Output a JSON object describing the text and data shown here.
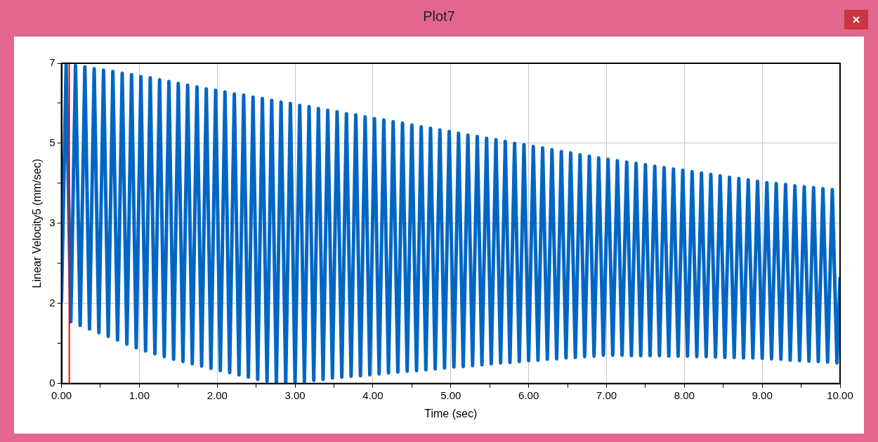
{
  "chart_data": {
    "type": "line",
    "title": "Plot7",
    "xlabel": "Time (sec)",
    "ylabel": "Linear Velocity5 (mm/sec)",
    "x": [
      0,
      0.06,
      0.12,
      0.18,
      0.24,
      0.3,
      0.36,
      0.42,
      0.48,
      0.54,
      0.6,
      0.66,
      0.72,
      0.78,
      0.84,
      0.9,
      0.96,
      1.02,
      1.08,
      1.14,
      1.2,
      1.26,
      1.32,
      1.38,
      1.44,
      1.5,
      1.56,
      1.62,
      1.68,
      1.74,
      1.8,
      1.86,
      1.92,
      1.98,
      2.04,
      2.1,
      2.16,
      2.22,
      2.28,
      2.34,
      2.4,
      2.46,
      2.52,
      2.58,
      2.64,
      2.7,
      2.76,
      2.82,
      2.88,
      2.94,
      3,
      3.06,
      3.12,
      3.18,
      3.24,
      3.3,
      3.36,
      3.42,
      3.48,
      3.54,
      3.6,
      3.66,
      3.72,
      3.78,
      3.84,
      3.9,
      3.96,
      4.02,
      4.08,
      4.14,
      4.2,
      4.26,
      4.32,
      4.38,
      4.44,
      4.5,
      4.56,
      4.62,
      4.68,
      4.74,
      4.8,
      4.86,
      4.92,
      4.98,
      5.04,
      5.1,
      5.16,
      5.22,
      5.28,
      5.34,
      5.4,
      5.46,
      5.52,
      5.58,
      5.64,
      5.7,
      5.76,
      5.82,
      5.88,
      5.94,
      6,
      6.06,
      6.12,
      6.18,
      6.24,
      6.3,
      6.36,
      6.42,
      6.48,
      6.54,
      6.6,
      6.66,
      6.72,
      6.78,
      6.84,
      6.9,
      6.96,
      7.02,
      7.08,
      7.14,
      7.2,
      7.26,
      7.32,
      7.38,
      7.44,
      7.5,
      7.56,
      7.62,
      7.68,
      7.74,
      7.8,
      7.86,
      7.92,
      7.98,
      8.04,
      8.1,
      8.16,
      8.22,
      8.28,
      8.34,
      8.4,
      8.46,
      8.52,
      8.58,
      8.64,
      8.7,
      8.76,
      8.82,
      8.88,
      8.94,
      9,
      9.06,
      9.12,
      9.18,
      9.24,
      9.3,
      9.36,
      9.42,
      9.48,
      9.54,
      9.6,
      9.66,
      9.72,
      9.78,
      9.84,
      9.9,
      9.96,
      10
    ],
    "series": [
      {
        "color": "#0066c4",
        "values": [
          1.8,
          6.98,
          1.35,
          6.95,
          1.27,
          6.92,
          1.19,
          6.88,
          1.11,
          6.85,
          1.03,
          6.82,
          0.95,
          6.78,
          0.86,
          6.75,
          0.78,
          6.71,
          0.71,
          6.68,
          0.65,
          6.64,
          0.59,
          6.6,
          0.53,
          6.56,
          0.48,
          6.52,
          0.43,
          6.48,
          0.38,
          6.44,
          0.33,
          6.41,
          0.28,
          6.37,
          0.24,
          6.33,
          0.19,
          6.3,
          0.14,
          6.26,
          0.09,
          6.23,
          0.05,
          6.19,
          0.01,
          6.15,
          0.01,
          6.12,
          0.02,
          6.08,
          0.04,
          6.05,
          0.07,
          6.01,
          0.09,
          5.97,
          0.12,
          5.94,
          0.14,
          5.9,
          0.16,
          5.87,
          0.17,
          5.83,
          0.19,
          5.79,
          0.21,
          5.76,
          0.23,
          5.72,
          0.25,
          5.69,
          0.27,
          5.65,
          0.28,
          5.61,
          0.3,
          5.58,
          0.32,
          5.54,
          0.34,
          5.51,
          0.36,
          5.47,
          0.37,
          5.43,
          0.39,
          5.4,
          0.41,
          5.36,
          0.43,
          5.33,
          0.45,
          5.29,
          0.46,
          5.25,
          0.48,
          5.22,
          0.5,
          5.18,
          0.51,
          5.15,
          0.53,
          5.11,
          0.54,
          5.07,
          0.56,
          5.04,
          0.57,
          5,
          0.59,
          4.97,
          0.6,
          4.93,
          0.62,
          4.9,
          0.62,
          4.87,
          0.62,
          4.84,
          0.61,
          4.81,
          0.61,
          4.78,
          0.61,
          4.75,
          0.61,
          4.72,
          0.6,
          4.69,
          0.6,
          4.66,
          0.6,
          4.63,
          0.59,
          4.6,
          0.59,
          4.57,
          0.58,
          4.54,
          0.57,
          4.51,
          0.57,
          4.48,
          0.56,
          4.45,
          0.56,
          4.42,
          0.55,
          4.39,
          0.54,
          4.37,
          0.53,
          4.35,
          0.51,
          4.32,
          0.5,
          4.3,
          0.49,
          4.28,
          0.48,
          4.26,
          0.47,
          4.24,
          0.45,
          2.3
        ]
      }
    ],
    "xlim": [
      0,
      10
    ],
    "xticks": [
      {
        "value": 0,
        "label": "0.00"
      },
      {
        "value": 0.5,
        "label": null
      },
      {
        "value": 1,
        "label": "1.00"
      },
      {
        "value": 1.5,
        "label": null
      },
      {
        "value": 2,
        "label": "2.00"
      },
      {
        "value": 2.5,
        "label": null
      },
      {
        "value": 3,
        "label": "3.00"
      },
      {
        "value": 3.5,
        "label": null
      },
      {
        "value": 4,
        "label": "4.00"
      },
      {
        "value": 4.5,
        "label": null
      },
      {
        "value": 5,
        "label": "5.00"
      },
      {
        "value": 5.5,
        "label": null
      },
      {
        "value": 6,
        "label": "6.00"
      },
      {
        "value": 6.5,
        "label": null
      },
      {
        "value": 7,
        "label": "7.00"
      },
      {
        "value": 7.5,
        "label": null
      },
      {
        "value": 8,
        "label": "8.00"
      },
      {
        "value": 8.5,
        "label": null
      },
      {
        "value": 9,
        "label": "9.00"
      },
      {
        "value": 9.5,
        "label": null
      },
      {
        "value": 10,
        "label": "10.00"
      }
    ],
    "ylim": [
      0,
      7
    ],
    "yticks": [
      {
        "value": 0,
        "label": "0"
      },
      {
        "value": 0.875,
        "label": null
      },
      {
        "value": 1.75,
        "label": "2"
      },
      {
        "value": 2.625,
        "label": null
      },
      {
        "value": 3.5,
        "label": "3"
      },
      {
        "value": 4.375,
        "label": null
      },
      {
        "value": 5.25,
        "label": "5"
      },
      {
        "value": 6.125,
        "label": null
      },
      {
        "value": 7,
        "label": "7"
      }
    ],
    "ref_lines": [
      {
        "axis": "x",
        "value": 0.1,
        "color": "#ff0000"
      }
    ],
    "grid": true,
    "marker": "none",
    "line_style": "solid"
  }
}
